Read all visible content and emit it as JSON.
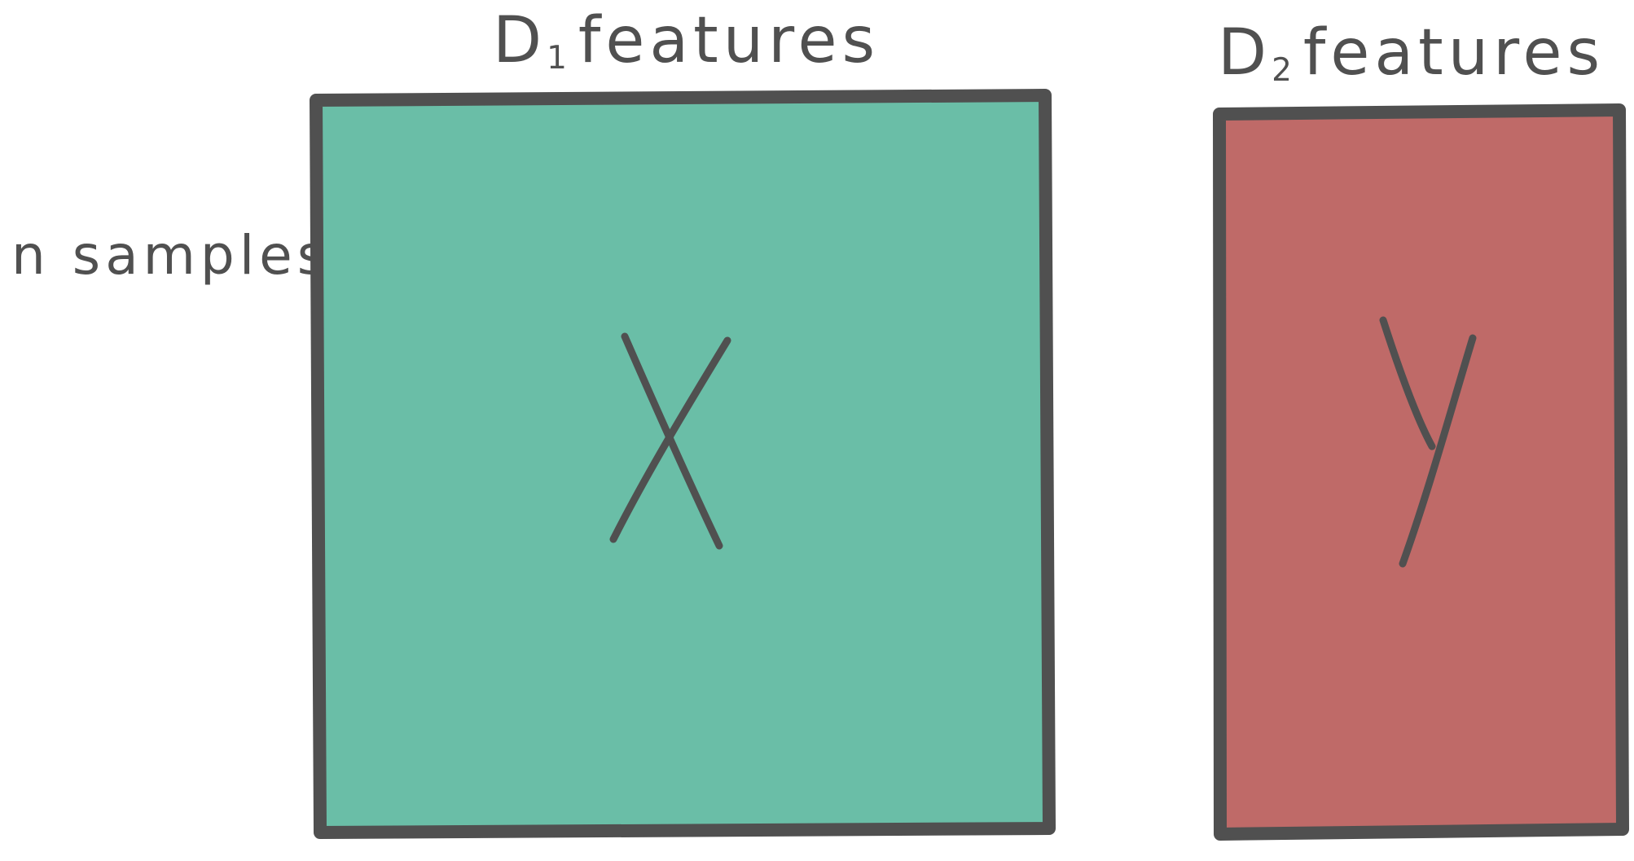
{
  "labels": {
    "d1_main": "D",
    "d1_sub": "1",
    "d1_word": "features",
    "d2_main": "D",
    "d2_sub": "2",
    "d2_word": "features",
    "rows": "n samples"
  },
  "matrices": {
    "x": {
      "letter": "X",
      "fill": "#6abea7"
    },
    "y": {
      "letter": "Y",
      "fill": "#bf6a68"
    }
  },
  "colors": {
    "stroke": "#505050",
    "background": "#ffffff"
  }
}
